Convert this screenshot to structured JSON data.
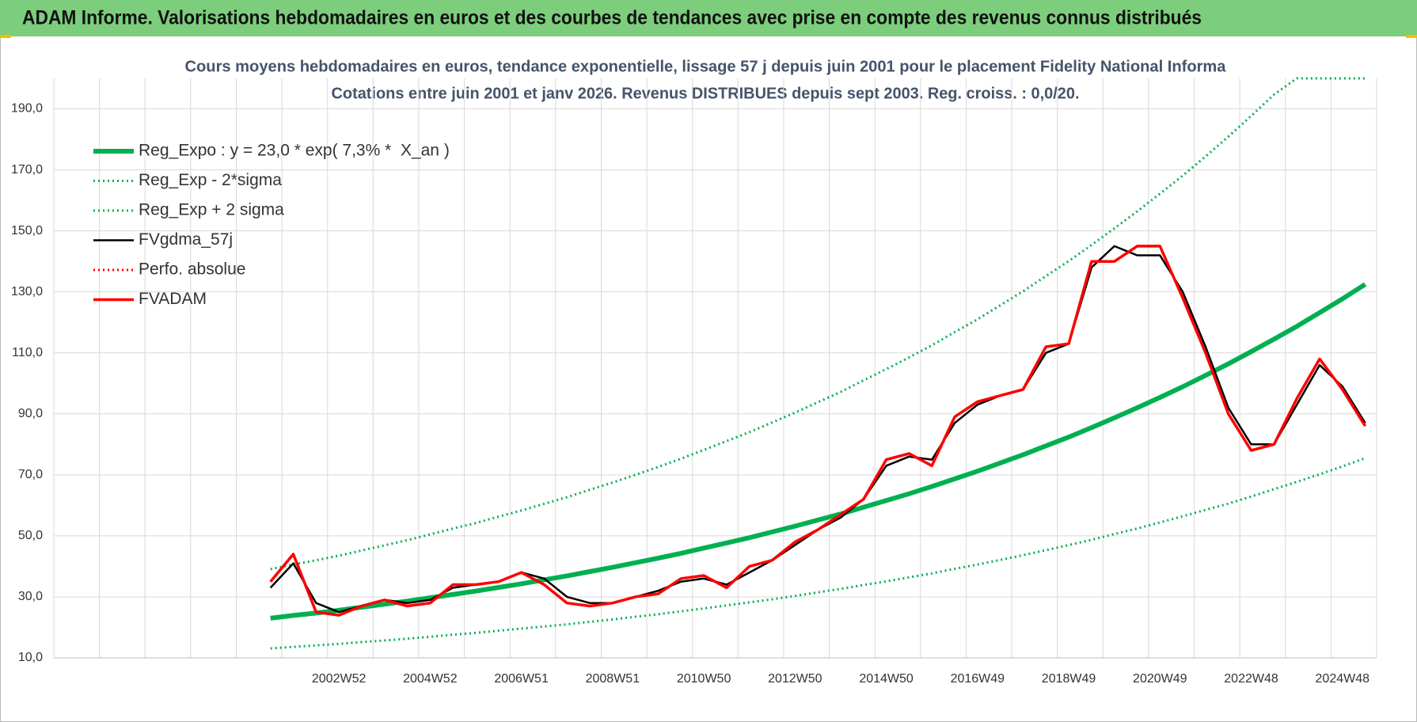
{
  "header": {
    "title": "ADAM Informe. Valorisations hebdomadaires en euros et des courbes de tendances avec prise en compte des revenus connus distribués"
  },
  "chart_data": {
    "type": "line",
    "title": "Cours moyens hebdomadaires en euros, tendance exponentielle, lissage 57 j depuis juin 2001 pour le placement Fidelity National Informa",
    "subtitle": "Cotations entre juin 2001 et janv 2026. Revenus DISTRIBUES depuis sept 2003. Reg. croiss. : 0,0/20.",
    "categories": [
      null,
      null,
      null,
      null,
      null,
      null,
      null,
      null,
      null,
      null,
      null,
      null,
      "2002W52",
      null,
      null,
      null,
      "2004W52",
      null,
      null,
      null,
      "2006W51",
      null,
      null,
      null,
      "2008W51",
      null,
      null,
      null,
      "2010W50",
      null,
      null,
      null,
      "2012W50",
      null,
      null,
      null,
      "2014W50",
      null,
      null,
      null,
      "2016W49",
      null,
      null,
      null,
      "2018W49",
      null,
      null,
      null,
      "2020W49",
      null,
      null,
      null,
      "2022W48",
      null,
      null,
      null,
      "2024W48",
      null
    ],
    "ylim": [
      10,
      200
    ],
    "yticks": [
      {
        "value": 10,
        "label": "10,0"
      },
      {
        "value": 30,
        "label": "30,0"
      },
      {
        "value": 50,
        "label": "50,0"
      },
      {
        "value": 70,
        "label": "70,0"
      },
      {
        "value": 90,
        "label": "90,0"
      },
      {
        "value": 110,
        "label": "110,0"
      },
      {
        "value": 130,
        "label": "130,0"
      },
      {
        "value": 150,
        "label": "150,0"
      },
      {
        "value": 170,
        "label": "170,0"
      },
      {
        "value": 190,
        "label": "190,0"
      }
    ],
    "grid": true,
    "legend": "upper left",
    "series": [
      {
        "name": "Reg_Expo : y = 23,0 * exp( 7,3% *  X_an )",
        "color": "#00b050",
        "line_style": "thick",
        "values": [
          null,
          null,
          null,
          null,
          null,
          null,
          null,
          null,
          null,
          23.0,
          23.9,
          24.7,
          25.6,
          26.6,
          27.6,
          28.6,
          29.7,
          30.8,
          31.9,
          33.1,
          34.3,
          35.6,
          36.9,
          38.3,
          39.7,
          41.2,
          42.7,
          44.3,
          46.0,
          47.7,
          49.4,
          51.3,
          53.2,
          55.2,
          57.2,
          59.4,
          61.6,
          63.8,
          66.2,
          68.7,
          71.2,
          73.9,
          76.6,
          79.5,
          82.4,
          85.5,
          88.7,
          92.0,
          95.4,
          98.9,
          102.6,
          106.4,
          110.4,
          114.5,
          118.7,
          123.2,
          127.7,
          132.5
        ]
      },
      {
        "name": "Reg_Exp - 2*sigma",
        "color": "#00b050",
        "line_style": "dotted",
        "values": [
          null,
          null,
          null,
          null,
          null,
          null,
          null,
          null,
          null,
          13.1,
          13.6,
          14.1,
          14.6,
          15.2,
          15.7,
          16.3,
          16.9,
          17.6,
          18.2,
          18.9,
          19.6,
          20.3,
          21.0,
          21.8,
          22.6,
          23.5,
          24.3,
          25.3,
          26.2,
          27.2,
          28.2,
          29.2,
          30.3,
          31.5,
          32.6,
          33.9,
          35.1,
          36.4,
          37.7,
          39.2,
          40.6,
          42.1,
          43.7,
          45.3,
          47.0,
          48.7,
          50.6,
          52.4,
          54.4,
          56.4,
          58.5,
          60.6,
          62.9,
          65.3,
          67.7,
          70.2,
          72.8,
          75.5
        ]
      },
      {
        "name": "Reg_Exp + 2 sigma",
        "color": "#00b050",
        "line_style": "dotted",
        "values": [
          null,
          null,
          null,
          null,
          null,
          null,
          null,
          null,
          null,
          39.1,
          40.6,
          42.0,
          43.5,
          45.2,
          46.9,
          48.6,
          50.5,
          52.4,
          54.2,
          56.3,
          58.3,
          60.5,
          62.7,
          65.1,
          67.5,
          70.0,
          72.6,
          75.3,
          78.2,
          81.1,
          84.0,
          87.2,
          90.4,
          93.8,
          97.2,
          101.0,
          104.7,
          108.5,
          112.5,
          116.8,
          121.0,
          125.6,
          130.2,
          135.2,
          140.1,
          145.4,
          150.8,
          156.4,
          162.2,
          168.1,
          174.4,
          180.9,
          187.7,
          194.7,
          200,
          200,
          200,
          200
        ]
      },
      {
        "name": "FVgdma_57j",
        "color": "#000000",
        "line_style": "solid",
        "values": [
          null,
          null,
          null,
          null,
          null,
          null,
          null,
          null,
          null,
          33,
          41,
          28,
          25,
          27,
          29,
          28,
          29,
          33,
          34,
          35,
          38,
          36,
          30,
          28,
          28,
          30,
          32,
          35,
          36,
          34,
          38,
          42,
          47,
          52,
          56,
          62,
          73,
          76,
          75,
          87,
          93,
          96,
          98,
          110,
          113,
          138,
          145,
          142,
          142,
          130,
          112,
          92,
          80,
          80,
          93,
          106,
          99,
          87
        ]
      },
      {
        "name": "Perfo. absolue",
        "color": "#ff0000",
        "line_style": "dotted",
        "values": [
          null,
          null,
          null,
          null,
          null,
          null,
          null,
          null,
          null,
          null,
          null,
          null,
          null,
          null,
          null,
          null,
          null,
          null,
          null,
          null,
          null,
          null,
          null,
          null,
          null,
          null,
          null,
          null,
          null,
          null,
          null,
          null,
          null,
          null,
          null,
          null,
          null,
          null,
          null,
          null,
          null,
          null,
          null,
          null,
          null,
          null,
          null,
          null,
          null,
          null,
          null,
          null,
          null,
          null,
          null,
          null,
          null,
          null
        ]
      },
      {
        "name": "FVADAM",
        "color": "#ff0000",
        "line_style": "solid",
        "values": [
          null,
          null,
          null,
          null,
          null,
          null,
          null,
          null,
          null,
          35,
          44,
          25,
          24,
          27,
          29,
          27,
          28,
          34,
          34,
          35,
          38,
          34,
          28,
          27,
          28,
          30,
          31,
          36,
          37,
          33,
          40,
          42,
          48,
          52,
          57,
          62,
          75,
          77,
          73,
          89,
          94,
          96,
          98,
          112,
          113,
          140,
          140,
          145,
          145,
          128,
          110,
          90,
          78,
          80,
          95,
          108,
          98,
          86
        ]
      }
    ]
  }
}
